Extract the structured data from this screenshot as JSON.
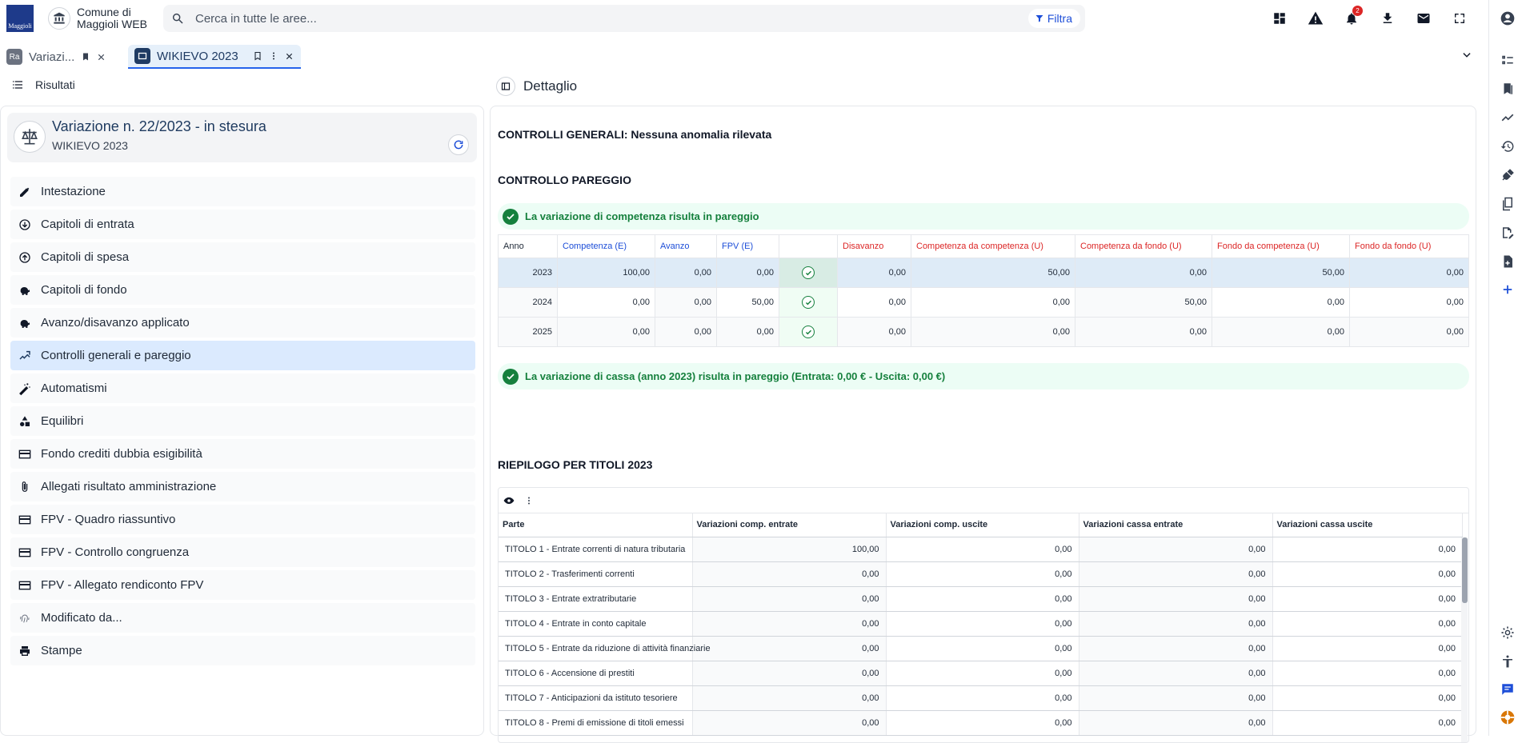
{
  "header": {
    "logo_text": "Maggioli",
    "org_line1": "Comune di",
    "org_line2": "Maggioli WEB",
    "search_placeholder": "Cerca in tutte le aree...",
    "filter_label": "Filtra",
    "notification_count": "2"
  },
  "tabs": [
    {
      "label": "Variazi..."
    },
    {
      "label": "WIKIEVO 2023"
    }
  ],
  "left": {
    "header_label": "Risultati",
    "card_title": "Variazione n. 22/2023 - in stesura",
    "card_subtitle": "WIKIEVO 2023",
    "menu": [
      {
        "label": "Intestazione",
        "icon": "pencil-icon"
      },
      {
        "label": "Capitoli di entrata",
        "icon": "arrow-down-circle-icon"
      },
      {
        "label": "Capitoli di spesa",
        "icon": "arrow-up-circle-icon"
      },
      {
        "label": "Capitoli di fondo",
        "icon": "piggy-bank-icon"
      },
      {
        "label": "Avanzo/disavanzo applicato",
        "icon": "piggy-bank-icon"
      },
      {
        "label": "Controlli generali e pareggio",
        "icon": "balance-icon",
        "active": true
      },
      {
        "label": "Automatismi",
        "icon": "magic-wand-icon"
      },
      {
        "label": "Equilibri",
        "icon": "shapes-icon"
      },
      {
        "label": "Fondo crediti dubbia esigibilità",
        "icon": "card-icon"
      },
      {
        "label": "Allegati risultato amministrazione",
        "icon": "paperclip-icon"
      },
      {
        "label": "FPV - Quadro riassuntivo",
        "icon": "card-icon"
      },
      {
        "label": "FPV - Controllo congruenza",
        "icon": "card-icon"
      },
      {
        "label": "FPV - Allegato rendiconto FPV",
        "icon": "card-icon"
      },
      {
        "label": "Modificato da...",
        "icon": "fingerprint-icon"
      },
      {
        "label": "Stampe",
        "icon": "printer-icon"
      }
    ]
  },
  "detail": {
    "title": "Dettaglio",
    "controlli_title": "CONTROLLI GENERALI: Nessuna anomalia rilevata",
    "pareggio_title": "CONTROLLO PAREGGIO",
    "competenza_msg": "La variazione di competenza risulta in pareggio",
    "cassa_msg": "La variazione di cassa (anno 2023) risulta in pareggio (Entrata: 0,00 € - Uscita: 0,00 €)",
    "pareggio_table": {
      "headers": [
        "Anno",
        "Competenza (E)",
        "Avanzo",
        "FPV (E)",
        "",
        "Disavanzo",
        "Competenza da competenza (U)",
        "Competenza da fondo (U)",
        "Fondo da competenza (U)",
        "Fondo da fondo (U)"
      ],
      "rows": [
        [
          "2023",
          "100,00",
          "0,00",
          "0,00",
          "0,00",
          "50,00",
          "0,00",
          "50,00",
          "0,00"
        ],
        [
          "2024",
          "0,00",
          "0,00",
          "50,00",
          "0,00",
          "0,00",
          "50,00",
          "0,00",
          "0,00"
        ],
        [
          "2025",
          "0,00",
          "0,00",
          "0,00",
          "0,00",
          "0,00",
          "0,00",
          "0,00",
          "0,00"
        ]
      ]
    },
    "riepilogo_title": "RIEPILOGO PER TITOLI 2023",
    "riepilogo_table": {
      "headers": [
        "Parte",
        "Variazioni comp. entrate",
        "Variazioni comp. uscite",
        "Variazioni cassa entrate",
        "Variazioni cassa uscite"
      ],
      "rows": [
        [
          "TITOLO 1 - Entrate correnti di natura tributaria",
          "100,00",
          "0,00",
          "0,00",
          "0,00"
        ],
        [
          "TITOLO 2 - Trasferimenti correnti",
          "0,00",
          "0,00",
          "0,00",
          "0,00"
        ],
        [
          "TITOLO 3 - Entrate extratributarie",
          "0,00",
          "0,00",
          "0,00",
          "0,00"
        ],
        [
          "TITOLO 4 - Entrate in conto capitale",
          "0,00",
          "0,00",
          "0,00",
          "0,00"
        ],
        [
          "TITOLO 5 - Entrate da riduzione di attività finanziarie",
          "0,00",
          "0,00",
          "0,00",
          "0,00"
        ],
        [
          "TITOLO 6 - Accensione di prestiti",
          "0,00",
          "0,00",
          "0,00",
          "0,00"
        ],
        [
          "TITOLO 7 - Anticipazioni da istituto tesoriere",
          "0,00",
          "0,00",
          "0,00",
          "0,00"
        ],
        [
          "TITOLO 8 - Premi di emissione di titoli emessi",
          "0,00",
          "0,00",
          "0,00",
          "0,00"
        ]
      ]
    }
  }
}
